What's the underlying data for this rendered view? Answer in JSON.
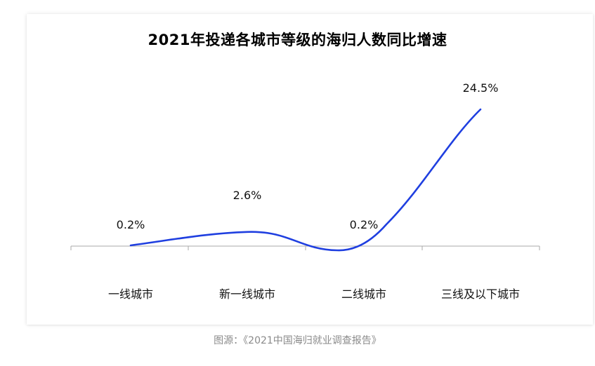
{
  "chart_data": {
    "type": "line",
    "title": "2021年投递各城市等级的海归人数同比增速",
    "categories": [
      "一线城市",
      "新一线城市",
      "二线城市",
      "三线及以下城市"
    ],
    "series": [
      {
        "values": [
          0.2,
          2.6,
          0.2,
          24.5
        ],
        "labels": [
          "0.2%",
          "2.6%",
          "0.2%",
          "24.5%"
        ]
      }
    ],
    "line_color": "#1f3fe0",
    "grid": false,
    "legend": "none"
  },
  "caption": "图源：《2021中国海归就业调查报告》"
}
